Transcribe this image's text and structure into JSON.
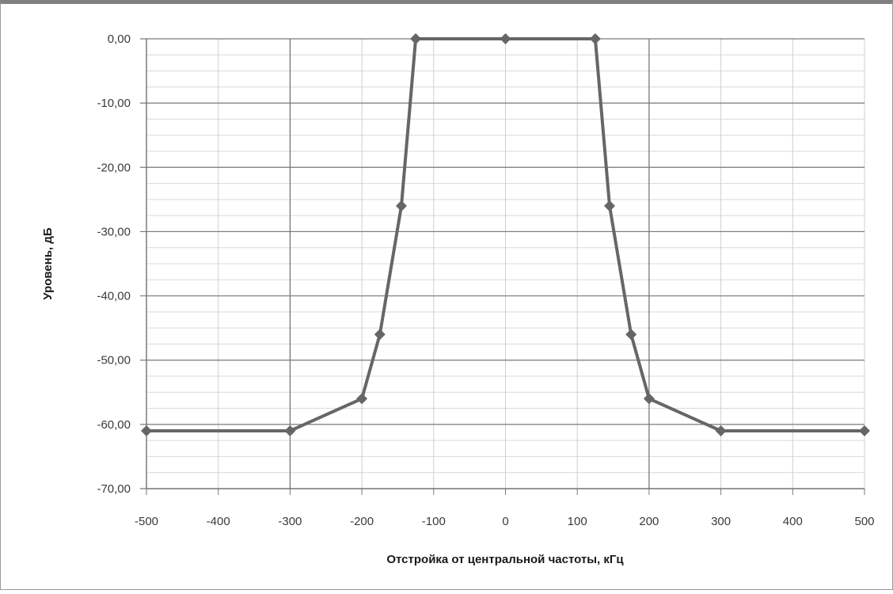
{
  "chart_data": {
    "type": "line",
    "title": "",
    "xlabel": "Отстройка от центральной частоты, кГц",
    "ylabel": "Уровень, дБ",
    "xlim": [
      -500,
      500
    ],
    "ylim": [
      -70,
      0
    ],
    "x_major_ticks": [
      -500,
      -300,
      200
    ],
    "x_ticks": [
      -500,
      -400,
      -300,
      -200,
      -100,
      0,
      100,
      200,
      300,
      400,
      500
    ],
    "x_tick_labels": [
      "-500",
      "-400",
      "-300",
      "-200",
      "-100",
      "0",
      "100",
      "200",
      "300",
      "400",
      "500"
    ],
    "y_ticks": [
      0,
      -10,
      -20,
      -30,
      -40,
      -50,
      -60,
      -70
    ],
    "y_tick_labels": [
      "0,00",
      "-10,00",
      "-20,00",
      "-30,00",
      "-40,00",
      "-50,00",
      "-60,00",
      "-70,00"
    ],
    "y_minor_step": 2.5,
    "grid": true,
    "legend": "none",
    "line_color": "#666666",
    "series": [
      {
        "x": [
          -500,
          -300,
          -200,
          -175,
          -145,
          -125,
          0,
          125,
          145,
          175,
          200,
          300,
          500
        ],
        "values": [
          -61,
          -61,
          -56,
          -46,
          -26,
          0,
          0,
          0,
          -26,
          -46,
          -56,
          -61,
          -61
        ]
      }
    ]
  }
}
